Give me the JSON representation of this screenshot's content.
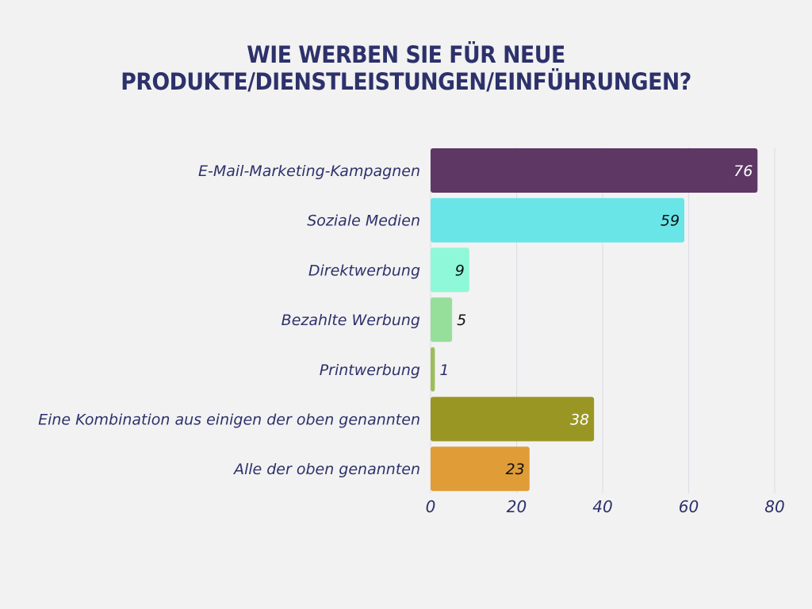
{
  "chart_data": {
    "type": "bar",
    "orientation": "horizontal",
    "title": "WIE WERBEN SIE FÜR NEUE PRODUKTE/DIENSTLEISTUNGEN/EINFÜHRUNGEN?",
    "title_lines": [
      "WIE WERBEN SIE FÜR NEUE",
      "PRODUKTE/DIENSTLEISTUNGEN/EINFÜHRUNGEN?"
    ],
    "xlabel": "",
    "ylabel": "",
    "xlim": [
      0,
      80
    ],
    "xticks": [
      0,
      20,
      40,
      60,
      80
    ],
    "grid": true,
    "categories": [
      "E-Mail-Marketing-Kampagnen",
      "Soziale Medien",
      "Direktwerbung",
      "Bezahlte Werbung",
      "Printwerbung",
      "Eine Kombination aus einigen der oben genannten",
      "Alle der oben genannten"
    ],
    "values": [
      76,
      59,
      9,
      5,
      1,
      38,
      23
    ],
    "colors": [
      "#5e3765",
      "#69e5e8",
      "#8ff8d8",
      "#95df9b",
      "#9dbd5c",
      "#9a9623",
      "#e09c36"
    ],
    "label_colors": [
      "#ffffff",
      "#111111",
      "#111111",
      "#111111",
      "#2d316b",
      "#ffffff",
      "#111111"
    ]
  }
}
